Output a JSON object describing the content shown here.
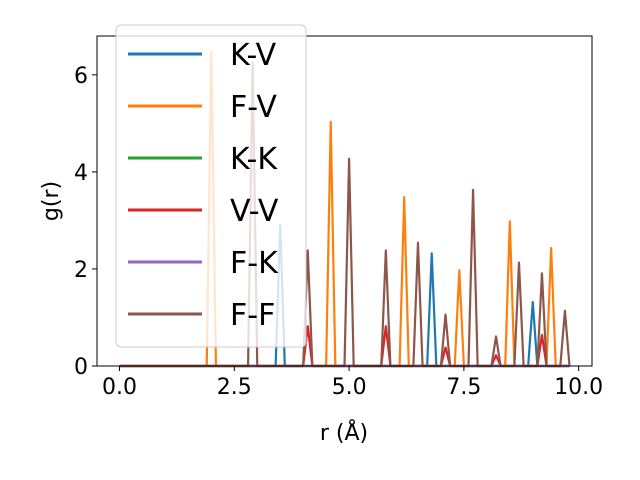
{
  "chart_data": {
    "type": "line",
    "xlabel": "r (Å)",
    "ylabel": "g(r)",
    "xlim": [
      -0.49,
      10.29
    ],
    "ylim": [
      0,
      6.8
    ],
    "xticks": [
      0.0,
      2.5,
      5.0,
      7.5,
      10.0
    ],
    "xtick_labels": [
      "0.0",
      "2.5",
      "5.0",
      "7.5",
      "10.0"
    ],
    "yticks": [
      0,
      2,
      4,
      6
    ],
    "ytick_labels": [
      "0",
      "2",
      "4",
      "6"
    ],
    "grid": false,
    "legend_position": "top-left",
    "peak_halfwidth": 0.1,
    "series": [
      {
        "name": "K-V",
        "color": "#1f77b4",
        "peaks": [
          [
            3.5,
            2.9
          ],
          [
            6.8,
            2.32
          ],
          [
            9.0,
            1.32
          ]
        ]
      },
      {
        "name": "F-V",
        "color": "#ff7f0e",
        "peaks": [
          [
            2.0,
            6.48
          ],
          [
            4.6,
            5.03
          ],
          [
            6.2,
            3.48
          ],
          [
            7.4,
            1.97
          ],
          [
            8.5,
            2.98
          ],
          [
            9.4,
            2.43
          ]
        ]
      },
      {
        "name": "K-K",
        "color": "#2ca02c",
        "peaks": []
      },
      {
        "name": "V-V",
        "color": "#d62728",
        "peaks": [
          [
            4.1,
            0.82
          ],
          [
            5.8,
            0.82
          ],
          [
            7.1,
            0.38
          ],
          [
            8.2,
            0.22
          ],
          [
            9.2,
            0.64
          ]
        ]
      },
      {
        "name": "F-K",
        "color": "#9467bd",
        "peaks": []
      },
      {
        "name": "F-F",
        "color": "#8c564b",
        "peaks": [
          [
            2.9,
            6.25
          ],
          [
            4.1,
            2.38
          ],
          [
            5.0,
            4.27
          ],
          [
            5.8,
            2.38
          ],
          [
            6.5,
            2.54
          ],
          [
            7.1,
            1.06
          ],
          [
            7.7,
            3.63
          ],
          [
            8.2,
            0.61
          ],
          [
            8.7,
            2.13
          ],
          [
            9.2,
            1.91
          ],
          [
            9.7,
            1.14
          ]
        ]
      }
    ]
  }
}
